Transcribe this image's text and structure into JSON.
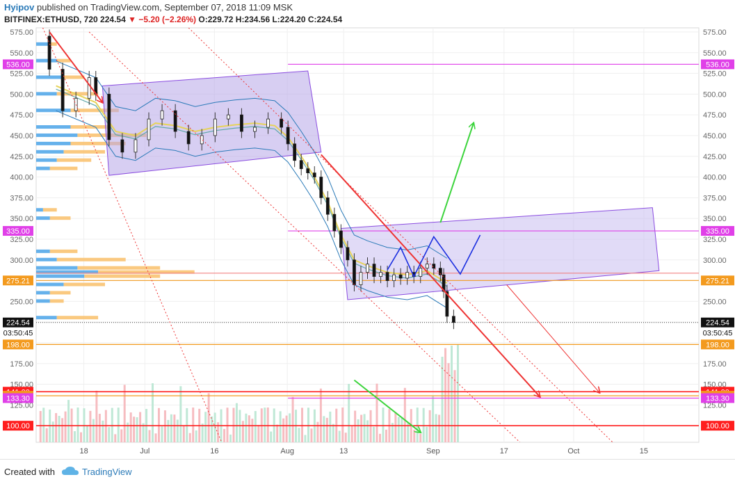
{
  "header": {
    "author": "Hyipov",
    "published_text": "published on TradingView.com, September 07, 2018 11:09 MSK",
    "symbol": "BITFINEX:ETHUSD, 720",
    "last": "224.54",
    "change": "−5.20 (−2.26%)",
    "ohlc": "O:229.72 H:234.56 L:224.20 C:224.54"
  },
  "footer": {
    "created_with": "Created with",
    "brand": "TradingView"
  },
  "chart_data": {
    "type": "candlestick",
    "symbol": "BITFINEX:ETHUSD",
    "interval": "720",
    "ylim": [
      80,
      580
    ],
    "y_ticks": [
      100,
      125,
      150,
      175,
      200,
      225,
      250,
      275,
      300,
      325,
      350,
      375,
      400,
      425,
      450,
      475,
      500,
      525,
      550,
      575
    ],
    "x_ticks": [
      {
        "label": "18",
        "pos": 0.072
      },
      {
        "label": "Jul",
        "pos": 0.164
      },
      {
        "label": "16",
        "pos": 0.269
      },
      {
        "label": "Aug",
        "pos": 0.379
      },
      {
        "label": "13",
        "pos": 0.464
      },
      {
        "label": "Sep",
        "pos": 0.599
      },
      {
        "label": "17",
        "pos": 0.706
      },
      {
        "label": "Oct",
        "pos": 0.811
      },
      {
        "label": "15",
        "pos": 0.917
      }
    ],
    "price_close_path": [
      [
        0.01,
        570
      ],
      [
        0.02,
        530
      ],
      [
        0.04,
        480
      ],
      [
        0.06,
        495
      ],
      [
        0.08,
        520
      ],
      [
        0.09,
        500
      ],
      [
        0.11,
        445
      ],
      [
        0.13,
        430
      ],
      [
        0.15,
        445
      ],
      [
        0.17,
        470
      ],
      [
        0.19,
        480
      ],
      [
        0.21,
        455
      ],
      [
        0.23,
        440
      ],
      [
        0.25,
        450
      ],
      [
        0.27,
        470
      ],
      [
        0.29,
        475
      ],
      [
        0.31,
        455
      ],
      [
        0.33,
        460
      ],
      [
        0.35,
        470
      ],
      [
        0.37,
        460
      ],
      [
        0.38,
        440
      ],
      [
        0.39,
        420
      ],
      [
        0.4,
        410
      ],
      [
        0.41,
        405
      ],
      [
        0.42,
        400
      ],
      [
        0.43,
        375
      ],
      [
        0.44,
        355
      ],
      [
        0.45,
        335
      ],
      [
        0.46,
        315
      ],
      [
        0.47,
        300
      ],
      [
        0.48,
        270
      ],
      [
        0.49,
        285
      ],
      [
        0.5,
        295
      ],
      [
        0.51,
        280
      ],
      [
        0.52,
        285
      ],
      [
        0.53,
        275
      ],
      [
        0.54,
        282
      ],
      [
        0.55,
        278
      ],
      [
        0.56,
        285
      ],
      [
        0.57,
        280
      ],
      [
        0.58,
        290
      ],
      [
        0.59,
        295
      ],
      [
        0.6,
        290
      ],
      [
        0.61,
        282
      ],
      [
        0.615,
        262
      ],
      [
        0.62,
        232
      ],
      [
        0.63,
        224.54
      ]
    ],
    "ma_path": [
      [
        0.03,
        510
      ],
      [
        0.06,
        500
      ],
      [
        0.09,
        490
      ],
      [
        0.12,
        455
      ],
      [
        0.15,
        450
      ],
      [
        0.18,
        465
      ],
      [
        0.21,
        462
      ],
      [
        0.24,
        455
      ],
      [
        0.27,
        460
      ],
      [
        0.3,
        463
      ],
      [
        0.33,
        465
      ],
      [
        0.36,
        462
      ],
      [
        0.38,
        448
      ],
      [
        0.4,
        425
      ],
      [
        0.42,
        400
      ],
      [
        0.44,
        370
      ],
      [
        0.46,
        330
      ],
      [
        0.48,
        300
      ],
      [
        0.5,
        293
      ],
      [
        0.53,
        285
      ],
      [
        0.56,
        282
      ],
      [
        0.59,
        287
      ],
      [
        0.62,
        272
      ]
    ],
    "price_labels": [
      {
        "label": "536.00",
        "value": 536,
        "color": "#e040e8"
      },
      {
        "label": "335.00",
        "value": 335,
        "color": "#e040e8"
      },
      {
        "label": "275.21",
        "value": 275.21,
        "color": "#f39a1e"
      },
      {
        "label": "224.54",
        "value": 224.54,
        "color": "#111111"
      },
      {
        "label": "03:50:45",
        "value": 212,
        "color": "#111111"
      },
      {
        "label": "198.00",
        "value": 198,
        "color": "#f39a1e"
      },
      {
        "label": "141.00",
        "value": 141,
        "color": "#ff1e1e"
      },
      {
        "label": "136.12",
        "value": 136.12,
        "color": "#f39a1e"
      },
      {
        "label": "133.30",
        "value": 133.3,
        "color": "#e040e8"
      },
      {
        "label": "100.00",
        "value": 100,
        "color": "#ff1e1e"
      }
    ],
    "horizontal_lines": [
      {
        "value": 536,
        "color": "#e040e8",
        "from": 0.38
      },
      {
        "value": 335,
        "color": "#e040e8",
        "from": 0.38
      },
      {
        "value": 284,
        "color": "#f08080",
        "from": 0.0
      },
      {
        "value": 275.21,
        "color": "#f39a1e",
        "from": 0.0
      },
      {
        "value": 198,
        "color": "#f39a1e",
        "from": 0.0
      },
      {
        "value": 141,
        "color": "#ff1e1e",
        "from": 0.0
      },
      {
        "value": 136.12,
        "color": "#f39a1e",
        "from": 0.0
      },
      {
        "value": 133.3,
        "color": "#e040e8",
        "from": 0.38
      },
      {
        "value": 100,
        "color": "#ff1e1e",
        "from": 0.0
      }
    ],
    "channels": [
      {
        "points": [
          [
            0.1,
            510
          ],
          [
            0.41,
            528
          ],
          [
            0.43,
            430
          ],
          [
            0.11,
            402
          ]
        ],
        "fill": "#b7a6e8",
        "stroke": "#8a4be0"
      },
      {
        "points": [
          [
            0.46,
            338
          ],
          [
            0.93,
            363
          ],
          [
            0.94,
            287
          ],
          [
            0.47,
            252
          ]
        ],
        "fill": "#c9bdf0",
        "stroke": "#8a4be0"
      }
    ],
    "trend_lines": [
      {
        "from": [
          0.01,
          580
        ],
        "to": [
          0.28,
          80
        ],
        "color": "#e33",
        "dash": true
      },
      {
        "from": [
          0.08,
          575
        ],
        "to": [
          0.73,
          80
        ],
        "color": "#e33",
        "dash": true
      },
      {
        "from": [
          0.23,
          580
        ],
        "to": [
          0.87,
          80
        ],
        "color": "#e33",
        "dash": true
      },
      {
        "from": [
          0.43,
          427
        ],
        "to": [
          0.76,
          135
        ],
        "color": "#e33",
        "dash": false,
        "arrow": true,
        "width": 2
      },
      {
        "from": [
          0.71,
          270
        ],
        "to": [
          0.85,
          140
        ],
        "color": "#e33",
        "dash": false,
        "arrow": true,
        "width": 1
      },
      {
        "from": [
          0.02,
          575
        ],
        "to": [
          0.1,
          490
        ],
        "color": "#e33",
        "dash": false,
        "arrow": true,
        "width": 2
      },
      {
        "from": [
          0.61,
          345
        ],
        "to": [
          0.66,
          465
        ],
        "color": "#3bd43b",
        "dash": false,
        "arrow": true,
        "width": 2
      },
      {
        "from": [
          0.48,
          155
        ],
        "to": [
          0.58,
          92
        ],
        "color": "#3bd43b",
        "dash": false,
        "arrow": true,
        "width": 2
      }
    ],
    "zigzag": [
      [
        0.53,
        288
      ],
      [
        0.55,
        315
      ],
      [
        0.57,
        280
      ],
      [
        0.6,
        328
      ],
      [
        0.64,
        283
      ],
      [
        0.67,
        330
      ]
    ],
    "volume_profile": [
      {
        "price": 560,
        "blue": 0.02,
        "orange": 0.01
      },
      {
        "price": 540,
        "blue": 0.03,
        "orange": 0.02
      },
      {
        "price": 520,
        "blue": 0.04,
        "orange": 0.03
      },
      {
        "price": 500,
        "blue": 0.03,
        "orange": 0.06
      },
      {
        "price": 480,
        "blue": 0.05,
        "orange": 0.07
      },
      {
        "price": 460,
        "blue": 0.05,
        "orange": 0.06
      },
      {
        "price": 450,
        "blue": 0.06,
        "orange": 0.1
      },
      {
        "price": 440,
        "blue": 0.05,
        "orange": 0.08
      },
      {
        "price": 430,
        "blue": 0.04,
        "orange": 0.06
      },
      {
        "price": 420,
        "blue": 0.03,
        "orange": 0.05
      },
      {
        "price": 410,
        "blue": 0.02,
        "orange": 0.04
      },
      {
        "price": 360,
        "blue": 0.01,
        "orange": 0.02
      },
      {
        "price": 350,
        "blue": 0.02,
        "orange": 0.03
      },
      {
        "price": 310,
        "blue": 0.02,
        "orange": 0.04
      },
      {
        "price": 300,
        "blue": 0.03,
        "orange": 0.1
      },
      {
        "price": 290,
        "blue": 0.06,
        "orange": 0.12
      },
      {
        "price": 285,
        "blue": 0.09,
        "orange": 0.14
      },
      {
        "price": 280,
        "blue": 0.07,
        "orange": 0.11
      },
      {
        "price": 270,
        "blue": 0.04,
        "orange": 0.06
      },
      {
        "price": 260,
        "blue": 0.02,
        "orange": 0.03
      },
      {
        "price": 250,
        "blue": 0.02,
        "orange": 0.02
      },
      {
        "price": 230,
        "blue": 0.03,
        "orange": 0.06
      }
    ]
  }
}
